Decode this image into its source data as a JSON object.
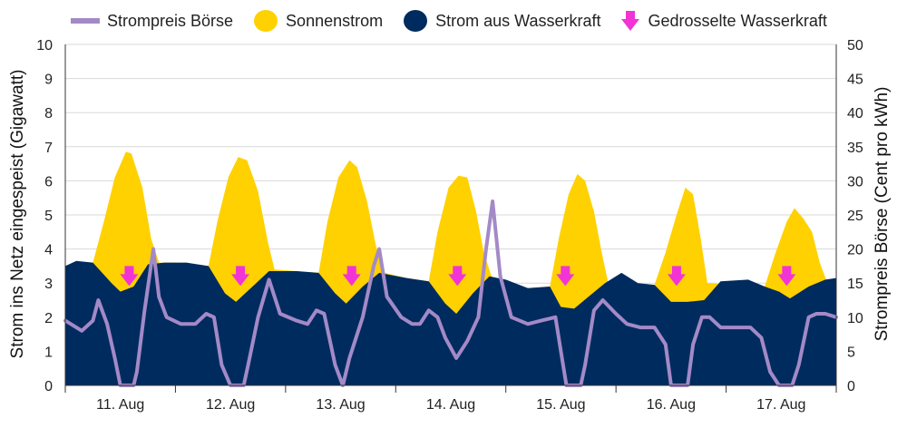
{
  "legend": {
    "price": "Strompreis Börse",
    "solar": "Sonnenstrom",
    "hydro": "Strom aus Wasserkraft",
    "throttled": "Gedrosselte Wasserkraft"
  },
  "chart_data": {
    "type": "area",
    "ylabel_left": "Strom ins Netz eingespeist (Gigawatt)",
    "ylabel_right": "Strompreis  Börse (Cent pro kWh)",
    "ylim_left": [
      0,
      10
    ],
    "ylim_right": [
      0,
      50
    ],
    "yticks_left": [
      "0",
      "1",
      "2",
      "3",
      "4",
      "5",
      "6",
      "7",
      "8",
      "9",
      "10"
    ],
    "yticks_right": [
      "0",
      "5",
      "10",
      "15",
      "20",
      "25",
      "30",
      "35",
      "40",
      "45",
      "50"
    ],
    "x_range_days": [
      0,
      7
    ],
    "categories": [
      "11. Aug",
      "12. Aug",
      "13. Aug",
      "14. Aug",
      "15. Aug",
      "16. Aug",
      "17. Aug"
    ],
    "grid": true,
    "legend_position": "top",
    "colors": {
      "solar": "#FFD100",
      "hydro": "#002B5F",
      "price": "#A38AC7",
      "arrow": "#F233D6",
      "grid": "#D9D9D9"
    },
    "series": [
      {
        "name": "Strom aus Wasserkraft",
        "unit": "GW",
        "points": [
          [
            0,
            3.5
          ],
          [
            0.1,
            3.65
          ],
          [
            0.25,
            3.6
          ],
          [
            0.42,
            3.0
          ],
          [
            0.5,
            2.75
          ],
          [
            0.62,
            2.9
          ],
          [
            0.75,
            3.55
          ],
          [
            0.9,
            3.6
          ],
          [
            1.1,
            3.6
          ],
          [
            1.3,
            3.5
          ],
          [
            1.45,
            2.7
          ],
          [
            1.55,
            2.45
          ],
          [
            1.7,
            2.9
          ],
          [
            1.85,
            3.35
          ],
          [
            2.1,
            3.35
          ],
          [
            2.3,
            3.3
          ],
          [
            2.45,
            2.7
          ],
          [
            2.55,
            2.4
          ],
          [
            2.7,
            2.9
          ],
          [
            2.85,
            3.3
          ],
          [
            3.1,
            3.15
          ],
          [
            3.3,
            3.05
          ],
          [
            3.45,
            2.4
          ],
          [
            3.55,
            2.1
          ],
          [
            3.7,
            2.7
          ],
          [
            3.85,
            3.2
          ],
          [
            4.0,
            3.1
          ],
          [
            4.2,
            2.85
          ],
          [
            4.4,
            2.9
          ],
          [
            4.5,
            2.3
          ],
          [
            4.62,
            2.25
          ],
          [
            4.75,
            2.6
          ],
          [
            4.9,
            3.0
          ],
          [
            5.05,
            3.3
          ],
          [
            5.2,
            3.0
          ],
          [
            5.35,
            2.95
          ],
          [
            5.5,
            2.45
          ],
          [
            5.65,
            2.45
          ],
          [
            5.8,
            2.5
          ],
          [
            5.95,
            3.05
          ],
          [
            6.2,
            3.1
          ],
          [
            6.35,
            2.9
          ],
          [
            6.48,
            2.75
          ],
          [
            6.58,
            2.55
          ],
          [
            6.75,
            2.9
          ],
          [
            6.9,
            3.1
          ],
          [
            7.0,
            3.15
          ]
        ]
      },
      {
        "name": "Sonnenstrom",
        "unit": "GW",
        "points": [
          [
            0,
            3.5
          ],
          [
            0.25,
            3.6
          ],
          [
            0.35,
            4.8
          ],
          [
            0.45,
            6.1
          ],
          [
            0.55,
            6.85
          ],
          [
            0.6,
            6.8
          ],
          [
            0.7,
            5.8
          ],
          [
            0.78,
            4.3
          ],
          [
            0.85,
            3.6
          ],
          [
            1.0,
            3.6
          ],
          [
            1.3,
            3.5
          ],
          [
            1.38,
            4.8
          ],
          [
            1.48,
            6.1
          ],
          [
            1.57,
            6.7
          ],
          [
            1.65,
            6.6
          ],
          [
            1.75,
            5.7
          ],
          [
            1.84,
            4.2
          ],
          [
            1.9,
            3.4
          ],
          [
            2.1,
            3.35
          ],
          [
            2.3,
            3.3
          ],
          [
            2.38,
            4.8
          ],
          [
            2.48,
            6.1
          ],
          [
            2.58,
            6.6
          ],
          [
            2.65,
            6.4
          ],
          [
            2.74,
            5.4
          ],
          [
            2.82,
            4.1
          ],
          [
            2.9,
            3.3
          ],
          [
            3.1,
            3.15
          ],
          [
            3.3,
            3.05
          ],
          [
            3.38,
            4.5
          ],
          [
            3.48,
            5.8
          ],
          [
            3.57,
            6.15
          ],
          [
            3.65,
            6.1
          ],
          [
            3.73,
            5.1
          ],
          [
            3.8,
            3.9
          ],
          [
            3.87,
            3.2
          ],
          [
            4.2,
            2.85
          ],
          [
            4.4,
            2.9
          ],
          [
            4.48,
            4.3
          ],
          [
            4.57,
            5.6
          ],
          [
            4.65,
            6.2
          ],
          [
            4.72,
            6.0
          ],
          [
            4.8,
            5.1
          ],
          [
            4.87,
            3.9
          ],
          [
            4.93,
            3.0
          ],
          [
            5.35,
            2.95
          ],
          [
            5.45,
            3.9
          ],
          [
            5.55,
            5.0
          ],
          [
            5.63,
            5.8
          ],
          [
            5.7,
            5.6
          ],
          [
            5.77,
            4.3
          ],
          [
            5.83,
            3.0
          ],
          [
            6.35,
            2.9
          ],
          [
            6.45,
            3.9
          ],
          [
            6.55,
            4.8
          ],
          [
            6.62,
            5.2
          ],
          [
            6.7,
            4.9
          ],
          [
            6.78,
            4.5
          ],
          [
            6.85,
            3.6
          ],
          [
            6.92,
            3.0
          ],
          [
            7.0,
            3.15
          ]
        ]
      },
      {
        "name": "Strompreis Börse",
        "unit": "Cent/kWh",
        "axis": "right",
        "points": [
          [
            0,
            9.5
          ],
          [
            0.15,
            8.0
          ],
          [
            0.25,
            9.5
          ],
          [
            0.3,
            12.5
          ],
          [
            0.38,
            9.0
          ],
          [
            0.45,
            4.0
          ],
          [
            0.5,
            0.0
          ],
          [
            0.62,
            0.0
          ],
          [
            0.65,
            2.0
          ],
          [
            0.72,
            11.0
          ],
          [
            0.8,
            20.0
          ],
          [
            0.85,
            13.0
          ],
          [
            0.92,
            10.0
          ],
          [
            1.05,
            9.0
          ],
          [
            1.18,
            9.0
          ],
          [
            1.28,
            10.5
          ],
          [
            1.35,
            10.0
          ],
          [
            1.42,
            3.0
          ],
          [
            1.5,
            0.0
          ],
          [
            1.62,
            0.0
          ],
          [
            1.66,
            3.0
          ],
          [
            1.75,
            10.0
          ],
          [
            1.85,
            15.5
          ],
          [
            1.95,
            10.5
          ],
          [
            2.1,
            9.5
          ],
          [
            2.2,
            9.0
          ],
          [
            2.28,
            11.0
          ],
          [
            2.35,
            10.5
          ],
          [
            2.45,
            3.0
          ],
          [
            2.52,
            0.0
          ],
          [
            2.58,
            4.0
          ],
          [
            2.7,
            10.0
          ],
          [
            2.8,
            17.5
          ],
          [
            2.85,
            20.0
          ],
          [
            2.92,
            13.0
          ],
          [
            3.05,
            10.0
          ],
          [
            3.15,
            9.0
          ],
          [
            3.22,
            9.0
          ],
          [
            3.3,
            11.0
          ],
          [
            3.38,
            10.0
          ],
          [
            3.45,
            7.0
          ],
          [
            3.55,
            4.0
          ],
          [
            3.65,
            6.5
          ],
          [
            3.75,
            10.0
          ],
          [
            3.82,
            20.0
          ],
          [
            3.88,
            27.0
          ],
          [
            3.95,
            16.0
          ],
          [
            4.05,
            10.0
          ],
          [
            4.2,
            9.0
          ],
          [
            4.32,
            9.5
          ],
          [
            4.45,
            10.0
          ],
          [
            4.5,
            5.0
          ],
          [
            4.55,
            0.0
          ],
          [
            4.68,
            0.0
          ],
          [
            4.72,
            3.0
          ],
          [
            4.8,
            11.0
          ],
          [
            4.88,
            12.5
          ],
          [
            5.0,
            10.5
          ],
          [
            5.1,
            9.0
          ],
          [
            5.22,
            8.5
          ],
          [
            5.35,
            8.5
          ],
          [
            5.45,
            6.0
          ],
          [
            5.5,
            0.0
          ],
          [
            5.65,
            0.0
          ],
          [
            5.7,
            6.0
          ],
          [
            5.78,
            10.0
          ],
          [
            5.85,
            10.0
          ],
          [
            5.95,
            8.5
          ],
          [
            6.1,
            8.5
          ],
          [
            6.22,
            8.5
          ],
          [
            6.32,
            7.0
          ],
          [
            6.4,
            2.0
          ],
          [
            6.48,
            0.0
          ],
          [
            6.6,
            0.0
          ],
          [
            6.66,
            3.0
          ],
          [
            6.75,
            10.0
          ],
          [
            6.82,
            10.5
          ],
          [
            6.9,
            10.5
          ],
          [
            7.0,
            10.0
          ]
        ]
      }
    ],
    "throttled_arrows_day": [
      0.58,
      1.59,
      2.6,
      3.56,
      4.54,
      5.55,
      6.55
    ]
  }
}
